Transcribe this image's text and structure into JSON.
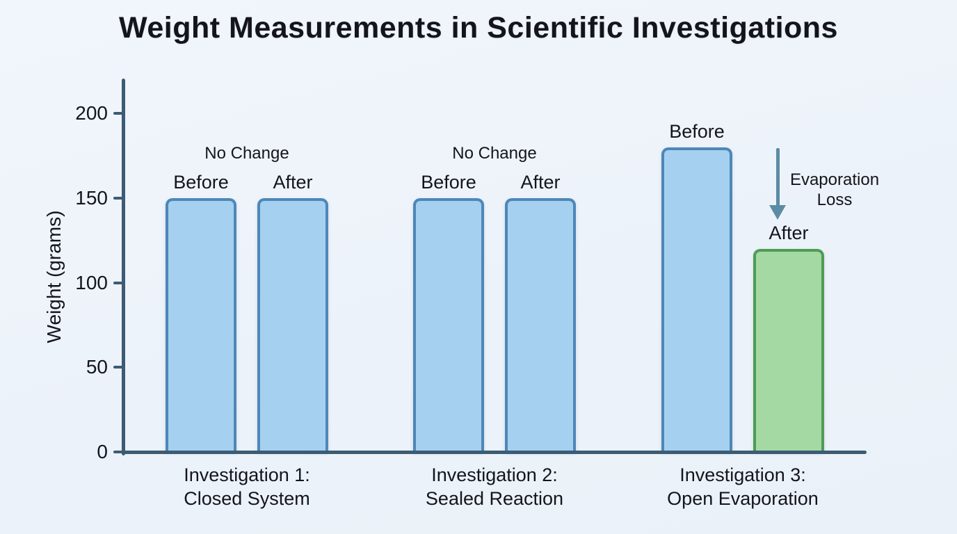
{
  "title": "Weight Measurements in Scientific Investigations",
  "chart_data": {
    "type": "bar",
    "title": "Weight Measurements in Scientific Investigations",
    "xlabel": "",
    "ylabel": "Weight (grams)",
    "ylim": [
      0,
      220
    ],
    "yticks": [
      0,
      50,
      100,
      150,
      200
    ],
    "grid": false,
    "legend_position": "none",
    "categories": [
      "Investigation 1: Closed System",
      "Investigation 2: Sealed Reaction",
      "Investigation 3: Open Evaporation"
    ],
    "category_label_lines": [
      [
        "Investigation 1:",
        "Closed System"
      ],
      [
        "Investigation 2:",
        "Sealed Reaction"
      ],
      [
        "Investigation 3:",
        "Open Evaporation"
      ]
    ],
    "series": [
      {
        "name": "Before",
        "values": [
          150,
          150,
          180
        ]
      },
      {
        "name": "After",
        "values": [
          150,
          150,
          120
        ]
      }
    ],
    "annotations": [
      {
        "lines": [
          "No Change"
        ],
        "arrow": false
      },
      {
        "lines": [
          "No Change"
        ],
        "arrow": false
      },
      {
        "lines": [
          "Evaporation",
          "Loss"
        ],
        "arrow": true
      }
    ],
    "after_bar_styles": [
      "blue",
      "blue",
      "green"
    ],
    "colors": {
      "background": "#edf3fa",
      "axis": "#3c5c74",
      "text": "#14151c",
      "bar_blue_fill": "#a6d0f0",
      "bar_blue_border": "#4e87b8",
      "bar_green_fill": "#a5d9a3",
      "bar_green_border": "#4e9c56",
      "arrow": "#5b8ca4"
    }
  }
}
